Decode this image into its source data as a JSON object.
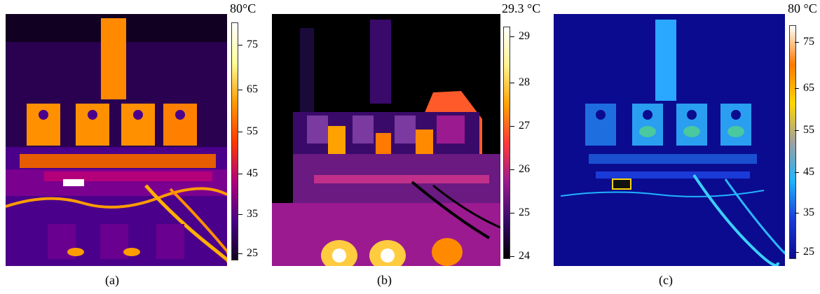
{
  "panels": [
    {
      "id": "a",
      "caption": "(a)",
      "max_label": "80°C",
      "ticks": [
        "75",
        "65",
        "55",
        "45",
        "35",
        "25"
      ],
      "palette": [
        "#120022",
        "#4a008a",
        "#b3007a",
        "#ff3a00",
        "#ff9c00",
        "#ffff9a",
        "#ffffff"
      ]
    },
    {
      "id": "b",
      "caption": "(b)",
      "max_label": "29.3 °C",
      "ticks": [
        "29",
        "28",
        "27",
        "26",
        "25",
        "24"
      ],
      "palette": [
        "#000000",
        "#3a0a6a",
        "#9b1a90",
        "#ff3a3a",
        "#ffa200",
        "#fff28c",
        "#ffffff"
      ]
    },
    {
      "id": "c",
      "caption": "(c)",
      "max_label": "80 °C",
      "ticks": [
        "75",
        "65",
        "55",
        "45",
        "35",
        "25"
      ],
      "palette": [
        "#0b0b8f",
        "#1a3bd7",
        "#1fb4ff",
        "#a0a0a0",
        "#ffd700",
        "#ff7a00",
        "#ffffff"
      ]
    }
  ]
}
